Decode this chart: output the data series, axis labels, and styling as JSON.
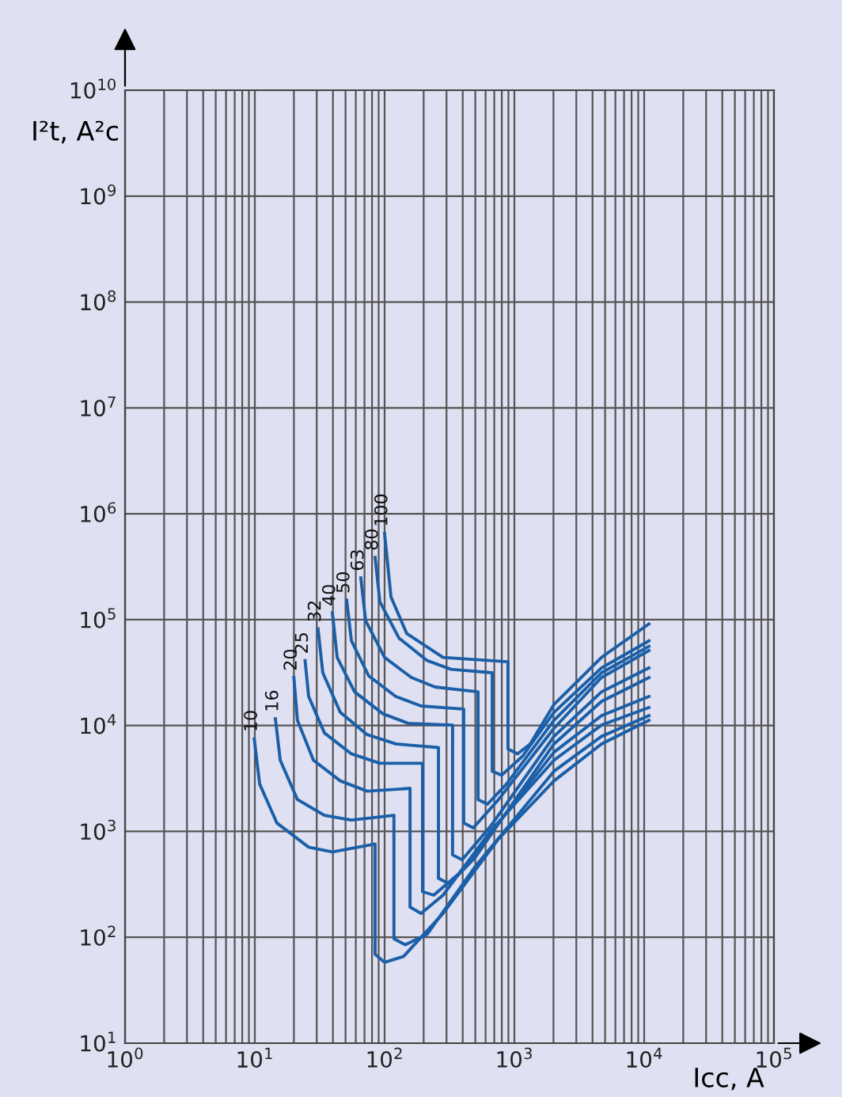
{
  "chart_data": {
    "type": "line",
    "xlabel": "Icc, A",
    "ylabel": "I²t, A²c",
    "log": "xy",
    "grid": true,
    "legend": false,
    "marker": "none",
    "line_style": "solid",
    "xlim": [
      1,
      100000
    ],
    "ylim": [
      10,
      10000000000
    ],
    "xticks": [
      {
        "value": 1,
        "label": "10$^{0}$"
      },
      {
        "value": 10,
        "label": "10$^{1}$"
      },
      {
        "value": 100,
        "label": "10$^{2}$"
      },
      {
        "value": 1000,
        "label": "10$^{3}$"
      },
      {
        "value": 10000,
        "label": "10$^{4}$"
      },
      {
        "value": 100000,
        "label": "10$^{5}$"
      }
    ],
    "yticks": [
      {
        "value": 10,
        "label": "10$^{1}$"
      },
      {
        "value": 100,
        "label": "10$^{2}$"
      },
      {
        "value": 1000,
        "label": "10$^{3}$"
      },
      {
        "value": 10000,
        "label": "10$^{4}$"
      },
      {
        "value": 100000,
        "label": "10$^{5}$"
      },
      {
        "value": 1000000,
        "label": "10$^{6}$"
      },
      {
        "value": 10000000,
        "label": "10$^{7}$"
      },
      {
        "value": 100000000,
        "label": "10$^{8}$"
      },
      {
        "value": 1000000000,
        "label": "10$^{9}$"
      },
      {
        "value": 10000000000,
        "label": "10$^{10}$"
      }
    ],
    "series": [
      {
        "name": "10",
        "color": "#1a5fa8",
        "x": [
          9.9,
          10.9,
          14.8,
          26.0,
          39.6,
          84.5,
          84.5,
          100,
          140,
          282,
          755,
          2018,
          4690,
          10880
        ],
        "values": [
          7500,
          2800,
          1200,
          710,
          640,
          760,
          69,
          58,
          66,
          168,
          850,
          3000,
          6700,
          11200
        ]
      },
      {
        "name": "16",
        "color": "#1a5fa8",
        "x": [
          14.4,
          15.7,
          21.3,
          34.4,
          55.5,
          118,
          118,
          144,
          213,
          495,
          2018,
          4690,
          10880
        ],
        "values": [
          11600,
          4700,
          2000,
          1420,
          1280,
          1420,
          97,
          85,
          107,
          460,
          3700,
          7900,
          12400
        ]
      },
      {
        "name": "20",
        "color": "#1a5fa8",
        "x": [
          20.0,
          21.3,
          28.3,
          45.6,
          73.4,
          157,
          157,
          191,
          282,
          656,
          2018,
          4690,
          10880
        ],
        "values": [
          28400,
          11200,
          4700,
          3000,
          2400,
          2550,
          193,
          168,
          250,
          1010,
          4700,
          10100,
          14800
        ]
      },
      {
        "name": "25",
        "color": "#1a5fa8",
        "x": [
          24.4,
          26.0,
          34.4,
          55.5,
          91.9,
          196,
          196,
          239,
          374,
          2018,
          4690,
          10880
        ],
        "values": [
          41000,
          18800,
          8500,
          5400,
          4400,
          4400,
          270,
          250,
          400,
          5600,
          12400,
          18800
        ]
      },
      {
        "name": "32",
        "color": "#1a5fa8",
        "x": [
          30.7,
          33.4,
          45.6,
          73.4,
          122,
          260,
          260,
          316,
          495,
          2018,
          4690,
          10880
        ],
        "values": [
          82000,
          31500,
          13300,
          8200,
          6700,
          6200,
          360,
          320,
          560,
          6700,
          16900,
          28400
        ]
      },
      {
        "name": "40",
        "color": "#1a5fa8",
        "x": [
          39.6,
          43.1,
          58.7,
          97.2,
          152,
          334,
          334,
          396,
          656,
          2018,
          4690,
          10880
        ],
        "values": [
          116000,
          44000,
          20800,
          12900,
          10500,
          10100,
          600,
          540,
          1120,
          7900,
          20800,
          35000
        ]
      },
      {
        "name": "50",
        "color": "#1a5fa8",
        "x": [
          51.0,
          55.5,
          75.5,
          122,
          191,
          407,
          407,
          482,
          755,
          2018,
          4690,
          10880
        ],
        "values": [
          153000,
          63000,
          29400,
          18800,
          15300,
          14300,
          1200,
          1080,
          2000,
          9400,
          28400,
          51000
        ]
      },
      {
        "name": "63",
        "color": "#1a5fa8",
        "x": [
          65.6,
          71.4,
          100,
          161,
          245,
          525,
          525,
          621,
          869,
          2018,
          4690,
          10880
        ],
        "values": [
          248000,
          98000,
          44000,
          28400,
          23100,
          20800,
          2000,
          1810,
          2800,
          11200,
          31500,
          56000
        ]
      },
      {
        "name": "80",
        "color": "#1a5fa8",
        "x": [
          84.5,
          91.9,
          129,
          213,
          325,
          675,
          675,
          798,
          1151,
          2018,
          4690,
          10880
        ],
        "values": [
          388000,
          148000,
          67000,
          41000,
          34000,
          31500,
          3700,
          3400,
          5100,
          13300,
          35000,
          63000
        ]
      },
      {
        "name": "100",
        "color": "#1a5fa8",
        "x": [
          100,
          112,
          148,
          282,
          893,
          893,
          1057,
          1324,
          2018,
          4690,
          10880
        ],
        "values": [
          650000,
          164000,
          74000,
          44000,
          40000,
          6000,
          5400,
          6700,
          15800,
          44000,
          91000
        ]
      }
    ]
  }
}
